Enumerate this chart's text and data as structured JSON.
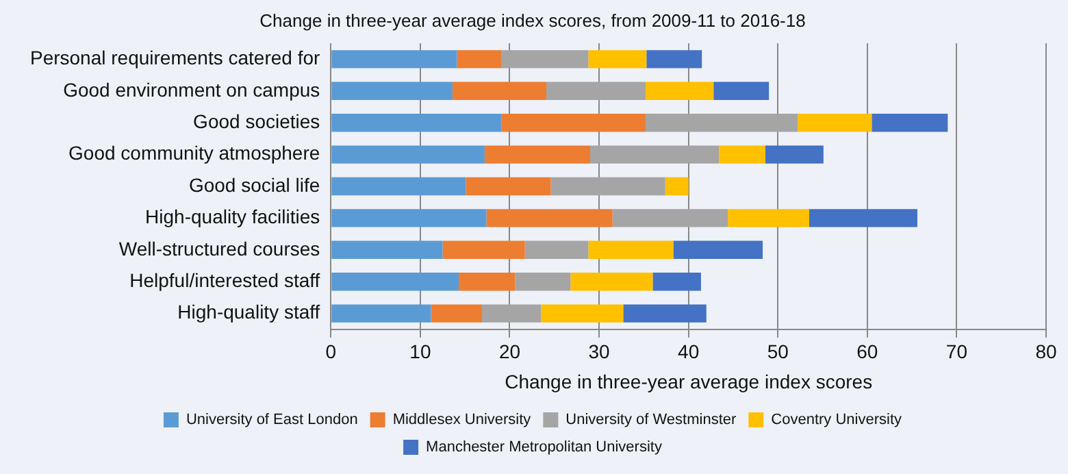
{
  "chart_data": {
    "type": "bar",
    "orientation": "horizontal",
    "stacked": true,
    "title": "Change in three-year average index scores, from 2009-11 to 2016-18",
    "xlabel": "Change in three-year average index scores",
    "categories": [
      "Personal requirements catered for",
      "Good environment on campus",
      "Good societies",
      "Good community atmosphere",
      "Good social life",
      "High-quality facilities",
      "Well-structured courses",
      "Helpful/interested staff",
      "High-quality staff"
    ],
    "series": [
      {
        "name": "University of East London",
        "color": "#5b9bd5",
        "values": [
          14.1,
          13.6,
          19.1,
          17.2,
          15.1,
          17.4,
          12.5,
          14.3,
          11.2
        ]
      },
      {
        "name": "Middlesex University",
        "color": "#ed7d31",
        "values": [
          5.0,
          10.5,
          16.1,
          11.8,
          9.5,
          14.1,
          9.2,
          6.3,
          5.7
        ]
      },
      {
        "name": "University of Westminster",
        "color": "#a5a5a5",
        "values": [
          9.7,
          11.1,
          17.0,
          14.4,
          12.8,
          12.9,
          7.1,
          6.2,
          6.6
        ]
      },
      {
        "name": "Coventry University",
        "color": "#ffc000",
        "values": [
          6.5,
          7.6,
          8.3,
          5.2,
          2.6,
          9.1,
          9.5,
          9.2,
          9.2
        ]
      },
      {
        "name": "Manchester Metropolitan University",
        "color": "#4472c4",
        "values": [
          6.2,
          6.2,
          8.5,
          6.5,
          null,
          12.1,
          10.0,
          5.4,
          9.3
        ]
      }
    ],
    "xlim": [
      0,
      80
    ],
    "xticks": [
      0,
      10,
      20,
      30,
      40,
      50,
      60,
      70,
      80
    ],
    "grid": "x",
    "legend": "bottom"
  }
}
